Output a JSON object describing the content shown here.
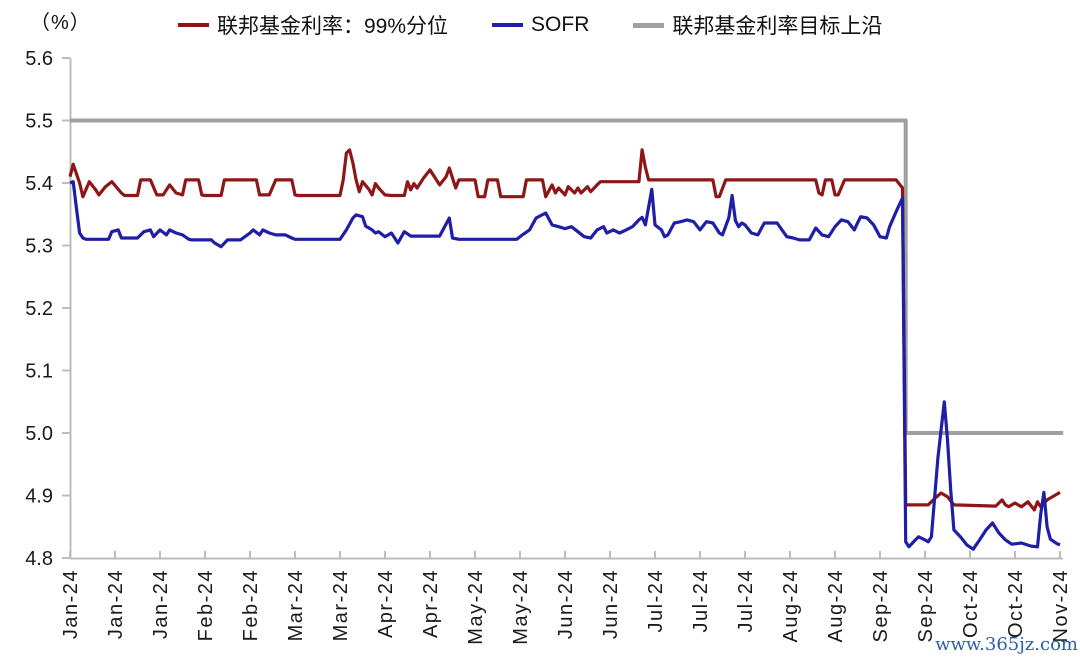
{
  "header": {
    "unit_label": "（%）"
  },
  "legend": [
    {
      "label": "联邦基金利率：99%分位",
      "color": "#8E1616"
    },
    {
      "label": "SOFR",
      "color": "#1E1EA6"
    },
    {
      "label": "联邦基金利率目标上沿",
      "color": "#A0A0A0"
    }
  ],
  "watermark": "www.365jz.com",
  "chart_data": {
    "type": "line",
    "title": "",
    "xlabel": "",
    "ylabel": "（%）",
    "x_unit": "days since 2024-01-01 (biweekly ticks)",
    "x_tick_interval_days": 14,
    "x_tick_labels": [
      "Jan-24",
      "Jan-24",
      "Jan-24",
      "Feb-24",
      "Feb-24",
      "Mar-24",
      "Mar-24",
      "Apr-24",
      "Apr-24",
      "May-24",
      "May-24",
      "Jun-24",
      "Jun-24",
      "Jul-24",
      "Jul-24",
      "Jul-24",
      "Aug-24",
      "Aug-24",
      "Sep-24",
      "Sep-24",
      "Oct-24",
      "Oct-24",
      "Nov-24"
    ],
    "ylim": [
      4.8,
      5.6
    ],
    "y_ticks": [
      4.8,
      4.9,
      5.0,
      5.1,
      5.2,
      5.3,
      5.4,
      5.5,
      5.6
    ],
    "grid": false,
    "legend_position": "top",
    "axis_color": "#BDBDBD",
    "tick_label_color": "#1A1A1A",
    "series": [
      {
        "name": "联邦基金利率：99%分位",
        "color": "#8E1616",
        "width": 3.2,
        "points": [
          [
            0,
            5.41
          ],
          [
            1,
            5.43
          ],
          [
            3,
            5.4
          ],
          [
            4,
            5.378
          ],
          [
            6,
            5.402
          ],
          [
            8,
            5.389
          ],
          [
            9,
            5.381
          ],
          [
            11,
            5.394
          ],
          [
            13,
            5.402
          ],
          [
            16,
            5.384
          ],
          [
            17,
            5.38
          ],
          [
            21,
            5.38
          ],
          [
            22,
            5.405
          ],
          [
            25,
            5.405
          ],
          [
            27,
            5.381
          ],
          [
            29,
            5.381
          ],
          [
            31,
            5.397
          ],
          [
            33,
            5.384
          ],
          [
            35,
            5.381
          ],
          [
            36,
            5.405
          ],
          [
            40,
            5.405
          ],
          [
            41,
            5.381
          ],
          [
            42,
            5.38
          ],
          [
            47,
            5.38
          ],
          [
            48,
            5.405
          ],
          [
            58,
            5.405
          ],
          [
            59,
            5.381
          ],
          [
            62,
            5.381
          ],
          [
            64,
            5.405
          ],
          [
            69,
            5.405
          ],
          [
            70,
            5.381
          ],
          [
            71,
            5.38
          ],
          [
            84,
            5.38
          ],
          [
            85,
            5.405
          ],
          [
            86,
            5.448
          ],
          [
            87,
            5.453
          ],
          [
            88,
            5.432
          ],
          [
            89,
            5.405
          ],
          [
            90,
            5.386
          ],
          [
            91,
            5.402
          ],
          [
            93,
            5.39
          ],
          [
            94,
            5.381
          ],
          [
            95,
            5.399
          ],
          [
            96,
            5.392
          ],
          [
            98,
            5.381
          ],
          [
            100,
            5.38
          ],
          [
            104,
            5.38
          ],
          [
            105,
            5.402
          ],
          [
            106,
            5.389
          ],
          [
            107,
            5.399
          ],
          [
            108,
            5.392
          ],
          [
            110,
            5.408
          ],
          [
            112,
            5.421
          ],
          [
            114,
            5.405
          ],
          [
            115,
            5.397
          ],
          [
            117,
            5.41
          ],
          [
            118,
            5.424
          ],
          [
            120,
            5.392
          ],
          [
            121,
            5.405
          ],
          [
            126,
            5.405
          ],
          [
            127,
            5.378
          ],
          [
            129,
            5.378
          ],
          [
            130,
            5.405
          ],
          [
            133,
            5.405
          ],
          [
            134,
            5.378
          ],
          [
            141,
            5.378
          ],
          [
            142,
            5.405
          ],
          [
            147,
            5.405
          ],
          [
            148,
            5.378
          ],
          [
            150,
            5.397
          ],
          [
            151,
            5.384
          ],
          [
            152,
            5.392
          ],
          [
            154,
            5.381
          ],
          [
            155,
            5.394
          ],
          [
            157,
            5.384
          ],
          [
            158,
            5.392
          ],
          [
            159,
            5.384
          ],
          [
            161,
            5.394
          ],
          [
            162,
            5.386
          ],
          [
            164,
            5.397
          ],
          [
            165,
            5.402
          ],
          [
            177,
            5.402
          ],
          [
            178,
            5.453
          ],
          [
            179,
            5.425
          ],
          [
            180,
            5.405
          ],
          [
            200,
            5.405
          ],
          [
            201,
            5.378
          ],
          [
            202,
            5.378
          ],
          [
            204,
            5.405
          ],
          [
            232,
            5.405
          ],
          [
            233,
            5.384
          ],
          [
            234,
            5.381
          ],
          [
            235,
            5.405
          ],
          [
            237,
            5.405
          ],
          [
            238,
            5.381
          ],
          [
            239,
            5.381
          ],
          [
            241,
            5.405
          ],
          [
            257,
            5.405
          ],
          [
            259,
            5.392
          ],
          [
            260,
            4.885
          ],
          [
            267,
            4.885
          ],
          [
            269,
            4.895
          ],
          [
            271,
            4.904
          ],
          [
            273,
            4.898
          ],
          [
            275,
            4.885
          ],
          [
            288,
            4.883
          ],
          [
            290,
            4.893
          ],
          [
            291,
            4.885
          ],
          [
            292,
            4.882
          ],
          [
            294,
            4.888
          ],
          [
            296,
            4.882
          ],
          [
            298,
            4.89
          ],
          [
            300,
            4.877
          ],
          [
            301,
            4.89
          ],
          [
            302,
            4.882
          ],
          [
            304,
            4.893
          ],
          [
            306,
            4.899
          ],
          [
            308,
            4.905
          ]
        ]
      },
      {
        "name": "SOFR",
        "color": "#1E1EA6",
        "width": 3.2,
        "points": [
          [
            0,
            5.4
          ],
          [
            1,
            5.402
          ],
          [
            2,
            5.36
          ],
          [
            3,
            5.32
          ],
          [
            4,
            5.312
          ],
          [
            5,
            5.31
          ],
          [
            12,
            5.31
          ],
          [
            13,
            5.322
          ],
          [
            15,
            5.325
          ],
          [
            16,
            5.312
          ],
          [
            21,
            5.312
          ],
          [
            23,
            5.322
          ],
          [
            25,
            5.325
          ],
          [
            26,
            5.314
          ],
          [
            28,
            5.325
          ],
          [
            30,
            5.317
          ],
          [
            31,
            5.325
          ],
          [
            33,
            5.32
          ],
          [
            35,
            5.317
          ],
          [
            37,
            5.31
          ],
          [
            38,
            5.309
          ],
          [
            44,
            5.309
          ],
          [
            45,
            5.304
          ],
          [
            47,
            5.298
          ],
          [
            49,
            5.309
          ],
          [
            53,
            5.309
          ],
          [
            56,
            5.32
          ],
          [
            57,
            5.325
          ],
          [
            59,
            5.317
          ],
          [
            60,
            5.325
          ],
          [
            62,
            5.32
          ],
          [
            64,
            5.317
          ],
          [
            67,
            5.317
          ],
          [
            69,
            5.312
          ],
          [
            70,
            5.31
          ],
          [
            84,
            5.31
          ],
          [
            86,
            5.325
          ],
          [
            88,
            5.344
          ],
          [
            89,
            5.349
          ],
          [
            91,
            5.346
          ],
          [
            92,
            5.331
          ],
          [
            94,
            5.325
          ],
          [
            95,
            5.32
          ],
          [
            96,
            5.322
          ],
          [
            98,
            5.314
          ],
          [
            100,
            5.32
          ],
          [
            102,
            5.304
          ],
          [
            104,
            5.322
          ],
          [
            106,
            5.315
          ],
          [
            115,
            5.315
          ],
          [
            118,
            5.344
          ],
          [
            119,
            5.312
          ],
          [
            121,
            5.31
          ],
          [
            139,
            5.31
          ],
          [
            141,
            5.318
          ],
          [
            143,
            5.325
          ],
          [
            145,
            5.344
          ],
          [
            148,
            5.352
          ],
          [
            150,
            5.333
          ],
          [
            152,
            5.33
          ],
          [
            154,
            5.327
          ],
          [
            156,
            5.33
          ],
          [
            158,
            5.322
          ],
          [
            160,
            5.314
          ],
          [
            162,
            5.312
          ],
          [
            164,
            5.325
          ],
          [
            166,
            5.33
          ],
          [
            167,
            5.32
          ],
          [
            169,
            5.325
          ],
          [
            171,
            5.32
          ],
          [
            173,
            5.325
          ],
          [
            175,
            5.33
          ],
          [
            177,
            5.341
          ],
          [
            178,
            5.345
          ],
          [
            179,
            5.333
          ],
          [
            181,
            5.39
          ],
          [
            182,
            5.333
          ],
          [
            184,
            5.325
          ],
          [
            185,
            5.314
          ],
          [
            186,
            5.317
          ],
          [
            188,
            5.336
          ],
          [
            190,
            5.338
          ],
          [
            192,
            5.341
          ],
          [
            194,
            5.338
          ],
          [
            196,
            5.325
          ],
          [
            198,
            5.338
          ],
          [
            200,
            5.336
          ],
          [
            202,
            5.32
          ],
          [
            203,
            5.317
          ],
          [
            205,
            5.345
          ],
          [
            206,
            5.38
          ],
          [
            207,
            5.34
          ],
          [
            208,
            5.33
          ],
          [
            209,
            5.336
          ],
          [
            210,
            5.333
          ],
          [
            212,
            5.32
          ],
          [
            214,
            5.317
          ],
          [
            216,
            5.336
          ],
          [
            220,
            5.336
          ],
          [
            223,
            5.314
          ],
          [
            225,
            5.312
          ],
          [
            227,
            5.309
          ],
          [
            230,
            5.309
          ],
          [
            232,
            5.328
          ],
          [
            234,
            5.317
          ],
          [
            236,
            5.314
          ],
          [
            238,
            5.33
          ],
          [
            240,
            5.341
          ],
          [
            242,
            5.338
          ],
          [
            244,
            5.325
          ],
          [
            245,
            5.336
          ],
          [
            246,
            5.346
          ],
          [
            248,
            5.344
          ],
          [
            250,
            5.333
          ],
          [
            252,
            5.314
          ],
          [
            254,
            5.312
          ],
          [
            255,
            5.33
          ],
          [
            257,
            5.354
          ],
          [
            259,
            5.376
          ],
          [
            260,
            4.826
          ],
          [
            261,
            4.818
          ],
          [
            263,
            4.829
          ],
          [
            264,
            4.834
          ],
          [
            266,
            4.829
          ],
          [
            267,
            4.826
          ],
          [
            268,
            4.834
          ],
          [
            270,
            4.96
          ],
          [
            272,
            5.05
          ],
          [
            273,
            4.989
          ],
          [
            274,
            4.909
          ],
          [
            275,
            4.845
          ],
          [
            277,
            4.834
          ],
          [
            279,
            4.821
          ],
          [
            281,
            4.814
          ],
          [
            283,
            4.829
          ],
          [
            285,
            4.845
          ],
          [
            287,
            4.856
          ],
          [
            289,
            4.84
          ],
          [
            291,
            4.829
          ],
          [
            293,
            4.822
          ],
          [
            296,
            4.824
          ],
          [
            299,
            4.819
          ],
          [
            301,
            4.818
          ],
          [
            302,
            4.87
          ],
          [
            303,
            4.905
          ],
          [
            304,
            4.85
          ],
          [
            305,
            4.83
          ],
          [
            307,
            4.823
          ],
          [
            308,
            4.821
          ]
        ]
      },
      {
        "name": "联邦基金利率目标上沿",
        "color": "#A0A0A0",
        "width": 4,
        "points": [
          [
            0,
            5.5
          ],
          [
            260,
            5.5
          ],
          [
            260,
            5.0
          ],
          [
            309,
            5.0
          ]
        ]
      }
    ]
  }
}
